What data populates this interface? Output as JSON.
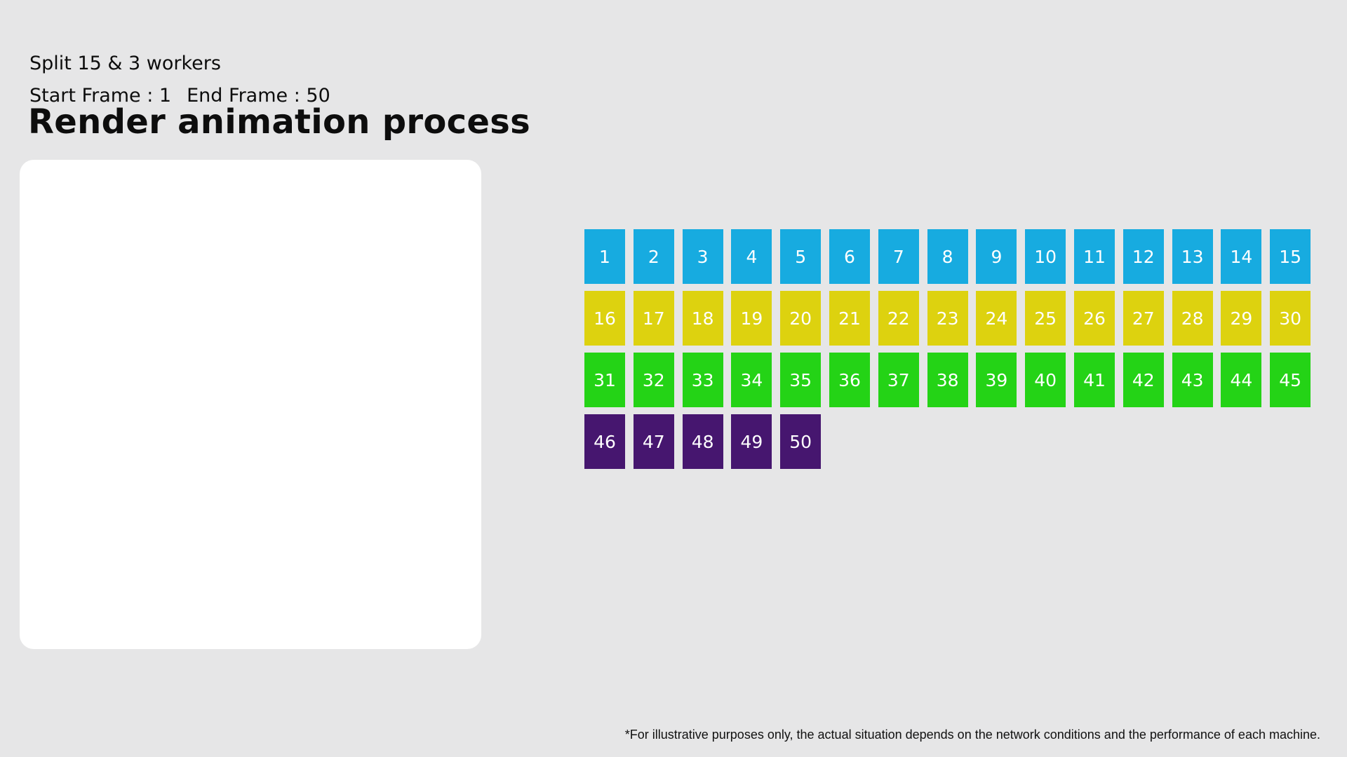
{
  "header": {
    "subtitle": "Split 15 & 3 workers",
    "start_frame_text": "Start Frame : 1",
    "end_frame_text": "End Frame : 50",
    "title": "Render animation process"
  },
  "frames": {
    "start": 1,
    "end": 50,
    "per_row": 15,
    "row_colors": [
      "#17abe0",
      "#ddd20f",
      "#24d316",
      "#46166f"
    ]
  },
  "footnote": "*For illustrative purposes only, the actual situation depends on the network conditions and the performance of each machine."
}
